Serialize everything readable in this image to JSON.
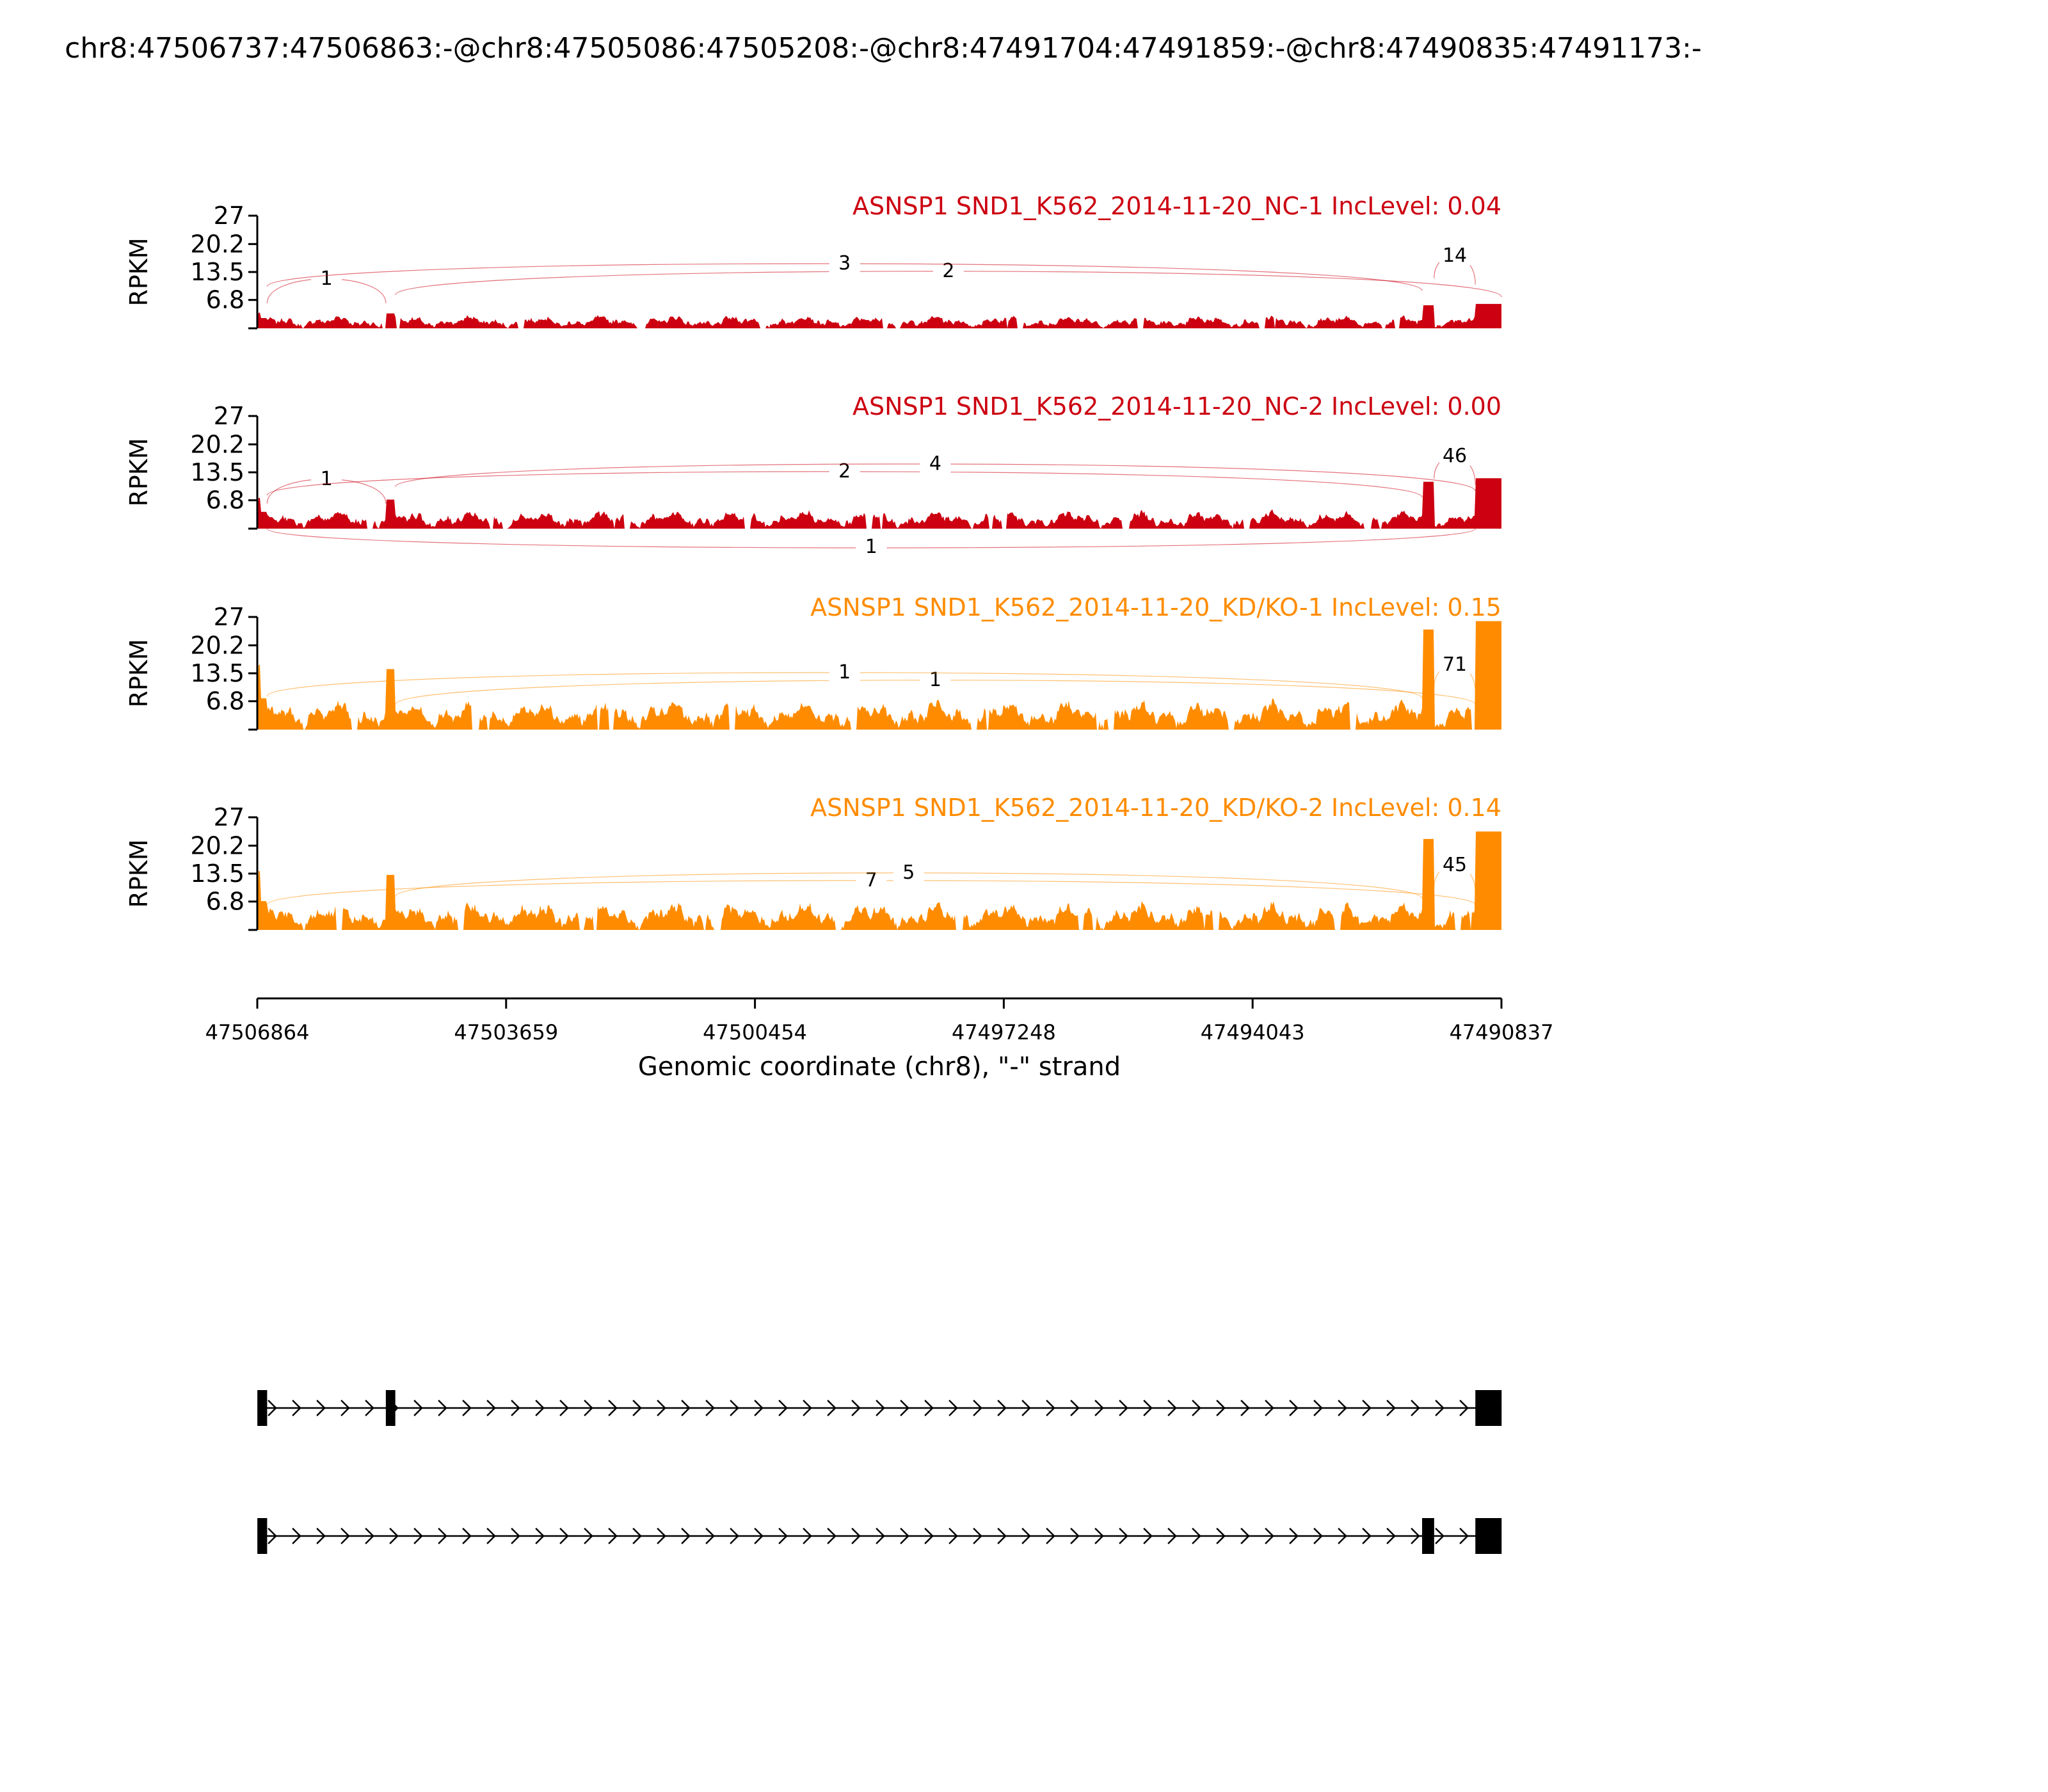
{
  "title": "chr8:47506737:47506863:-@chr8:47505086:47505208:-@chr8:47491704:47491859:-@chr8:47490835:47491173:-",
  "chart_data": {
    "type": "area",
    "plot_kind": "sashimi",
    "ylabel": "RPKM",
    "yticks": [
      "27",
      "20.2",
      "13.5",
      "6.8"
    ],
    "ylim": [
      0,
      27
    ],
    "xlabel": "Genomic coordinate (chr8), \"-\" strand",
    "xticks": [
      "47506864",
      "47503659",
      "47500454",
      "47497248",
      "47494043",
      "47490837"
    ],
    "xlim": [
      47506864,
      47490837
    ],
    "exons": [
      {
        "start": 47506863,
        "end": 47506737
      },
      {
        "start": 47505208,
        "end": 47505086
      },
      {
        "start": 47491859,
        "end": 47491704
      },
      {
        "start": 47491173,
        "end": 47490835
      }
    ],
    "panels": [
      {
        "label": "ASNSP1 SND1_K562_2014-11-20_NC-1 IncLevel: 0.04",
        "color": "#cc0011",
        "peak_scale": 0.16,
        "junctions": [
          {
            "count": "1",
            "from": 47506737,
            "to": 47505208,
            "side": "above"
          },
          {
            "count": "2",
            "from": 47505086,
            "to": 47490835,
            "side": "above"
          },
          {
            "count": "3",
            "from": 47506737,
            "to": 47491859,
            "side": "above"
          },
          {
            "count": "14",
            "from": 47491704,
            "to": 47491173,
            "side": "above"
          }
        ]
      },
      {
        "label": "ASNSP1 SND1_K562_2014-11-20_NC-2 IncLevel: 0.00",
        "color": "#cc0011",
        "peak_scale": 0.42,
        "junctions": [
          {
            "count": "1",
            "from": 47506737,
            "to": 47505208,
            "side": "above"
          },
          {
            "count": "2",
            "from": 47506737,
            "to": 47491859,
            "side": "above"
          },
          {
            "count": "4",
            "from": 47505086,
            "to": 47491173,
            "side": "above"
          },
          {
            "count": "46",
            "from": 47491704,
            "to": 47491173,
            "side": "above"
          },
          {
            "count": "1",
            "from": 47506737,
            "to": 47491173,
            "side": "below"
          }
        ]
      },
      {
        "label": "ASNSP1 SND1_K562_2014-11-20_KD/KO-1 IncLevel: 0.15",
        "color": "#ff8c00",
        "peak_scale": 1.0,
        "junctions": [
          {
            "count": "1",
            "from": 47505086,
            "to": 47491173,
            "side": "above"
          },
          {
            "count": "1",
            "from": 47506737,
            "to": 47491859,
            "side": "above"
          },
          {
            "count": "71",
            "from": 47491704,
            "to": 47491173,
            "side": "above"
          }
        ]
      },
      {
        "label": "ASNSP1 SND1_K562_2014-11-20_KD/KO-2 IncLevel: 0.14",
        "color": "#ff8c00",
        "peak_scale": 0.9,
        "junctions": [
          {
            "count": "7",
            "from": 47506737,
            "to": 47491173,
            "side": "above"
          },
          {
            "count": "5",
            "from": 47505086,
            "to": 47491859,
            "side": "above"
          },
          {
            "count": "45",
            "from": 47491704,
            "to": 47491173,
            "side": "above"
          }
        ]
      }
    ],
    "isoforms": [
      {
        "exons": [
          0,
          1,
          3
        ]
      },
      {
        "exons": [
          0,
          2,
          3
        ]
      }
    ]
  }
}
